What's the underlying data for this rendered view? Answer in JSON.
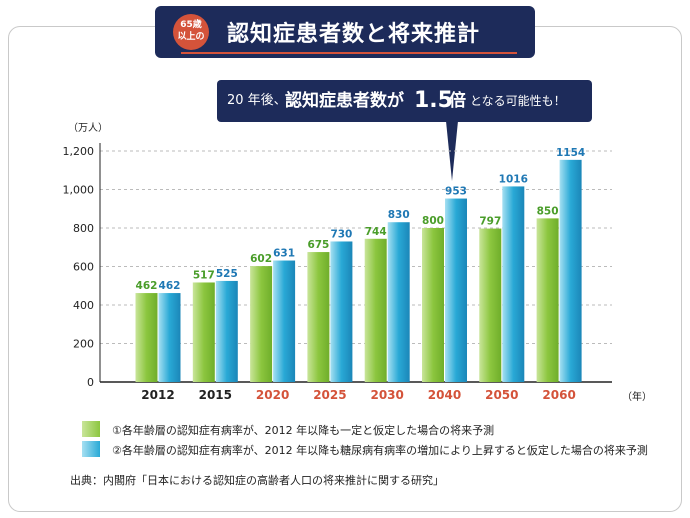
{
  "title": {
    "badge_line1": "65歳",
    "badge_line2": "以上の",
    "text": "認知症患者数と将来推計"
  },
  "callout": {
    "prefix": "20 年後、",
    "main": "認知症患者数が",
    "ratio": "1.5",
    "times": "倍",
    "suffix": "となる可能性も！"
  },
  "colors": {
    "navy": "#1d2b5a",
    "accent": "#d4533a",
    "green": "#8cc63f",
    "blue": "#29a9d6",
    "green_label": "#4a9d2a",
    "blue_label": "#1f78b4",
    "future_year": "#d4533a"
  },
  "chart_data": {
    "type": "bar",
    "ylabel": "（万人）",
    "xlabel": "（年）",
    "ylim": [
      0,
      1200
    ],
    "yticks": [
      "0",
      "200",
      "400",
      "600",
      "800",
      "1,000",
      "1,200"
    ],
    "grid": true,
    "categories": [
      "2012",
      "2015",
      "2020",
      "2025",
      "2030",
      "2040",
      "2050",
      "2060"
    ],
    "series": [
      {
        "name": "①各年齢層の認知症有病率が、2012 年以降も一定と仮定した場合の将来予測",
        "values": [
          462,
          517,
          602,
          675,
          744,
          800,
          797,
          850
        ]
      },
      {
        "name": "②各年齢層の認知症有病率が、2012 年以降も糖尿病有病率の増加により上昇すると仮定した場合の将来予測",
        "values": [
          462,
          525,
          631,
          730,
          830,
          953,
          1016,
          1154
        ]
      }
    ]
  },
  "source": "出典：内閣府「日本における認知症の高齢者人口の将来推計に関する研究」"
}
